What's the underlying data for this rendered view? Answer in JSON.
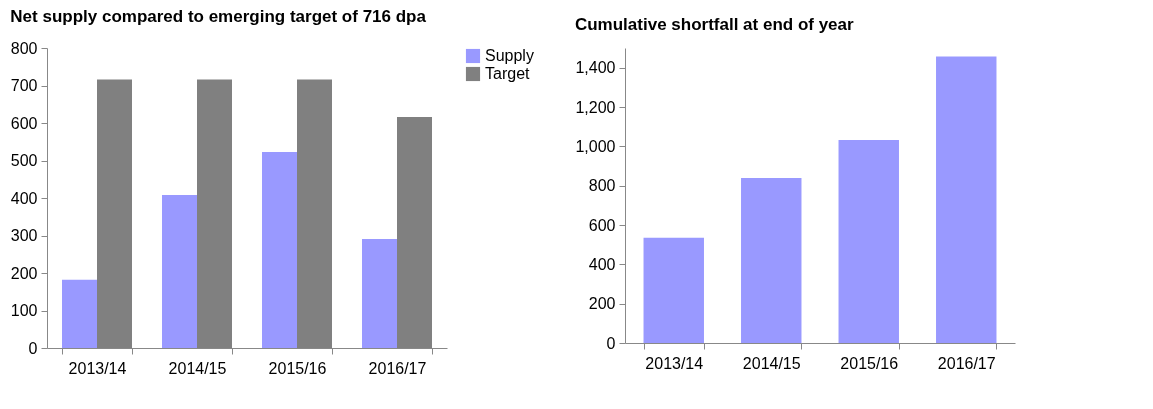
{
  "chart_data": [
    {
      "type": "bar",
      "title": "Net supply compared to emerging target of 716 dpa",
      "categories": [
        "2013/14",
        "2014/15",
        "2015/16",
        "2016/17"
      ],
      "series": [
        {
          "name": "Supply",
          "color": "#9999ff",
          "values": [
            182,
            408,
            523,
            291
          ]
        },
        {
          "name": "Target",
          "color": "#808080",
          "values": [
            716,
            716,
            716,
            616
          ]
        }
      ],
      "ylim": [
        0,
        800
      ],
      "yticks": [
        0,
        100,
        200,
        300,
        400,
        500,
        600,
        700,
        800
      ],
      "grid": false,
      "legend": "right"
    },
    {
      "type": "bar",
      "title": "Cumulative shortfall at end of year",
      "categories": [
        "2013/14",
        "2014/15",
        "2015/16",
        "2016/17"
      ],
      "series": [
        {
          "color": "#9999ff",
          "values": [
            535,
            839,
            1032,
            1457
          ]
        }
      ],
      "ylim": [
        0,
        1500
      ],
      "yticks": [
        0,
        200,
        400,
        600,
        800,
        {
          "value": 1000,
          "label": "1,000"
        },
        {
          "value": 1200,
          "label": "1,200"
        },
        {
          "value": 1400,
          "label": "1,400"
        }
      ],
      "grid": false
    }
  ]
}
